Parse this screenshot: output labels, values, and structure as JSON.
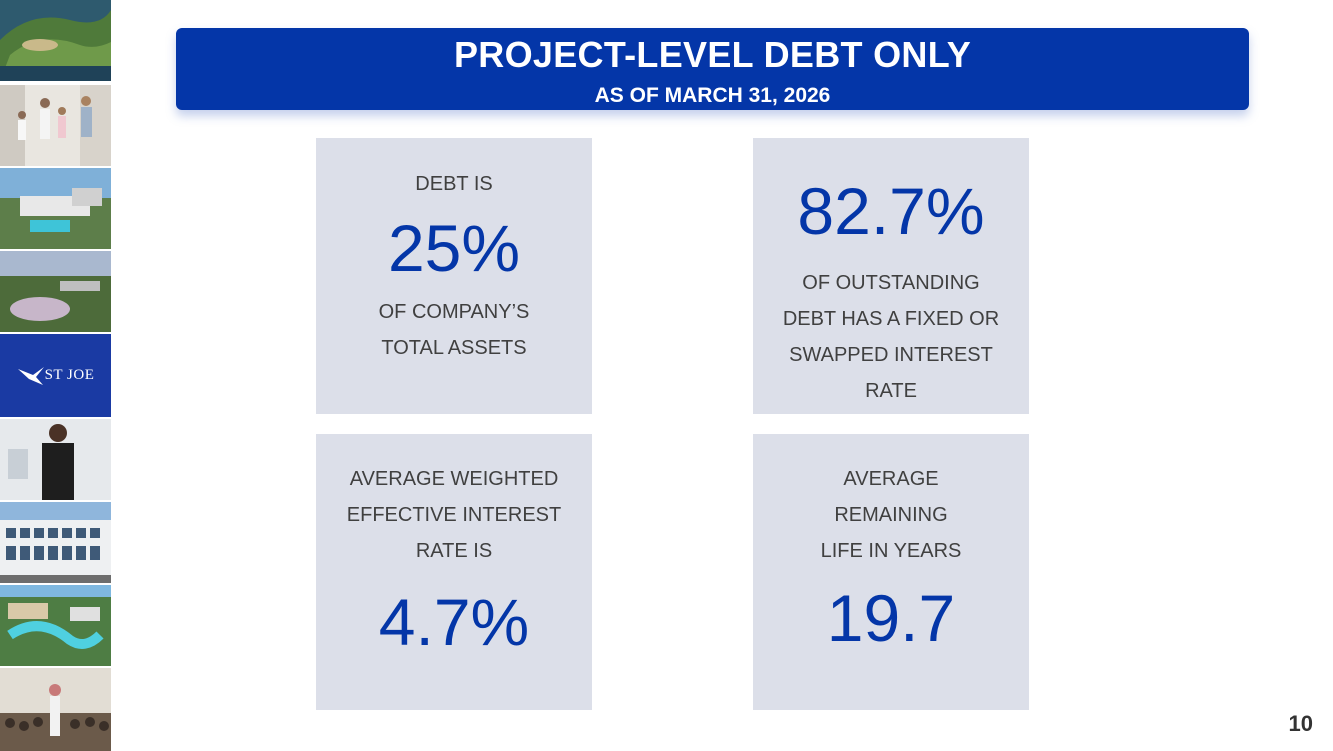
{
  "header": {
    "title": "PROJECT-LEVEL DEBT ONLY",
    "subtitle": "AS OF MARCH 31, 2026"
  },
  "cards": [
    {
      "pre": "DEBT IS",
      "value": "25%",
      "post": [
        "OF COMPANY’S",
        "TOTAL ASSETS"
      ]
    },
    {
      "value": "82.7%",
      "post": [
        "OF OUTSTANDING",
        "DEBT HAS A FIXED OR",
        "SWAPPED INTEREST",
        "RATE"
      ]
    },
    {
      "pre": [
        "AVERAGE WEIGHTED",
        "EFFECTIVE INTEREST",
        "RATE IS"
      ],
      "value": "4.7%"
    },
    {
      "pre": [
        "AVERAGE",
        "REMAINING",
        "LIFE IN YEARS"
      ],
      "value": "19.7"
    }
  ],
  "logo": {
    "text": "ST JOE"
  },
  "page_number": "10",
  "colors": {
    "brand_blue": "#0436a8",
    "card_bg": "#dcdfe9",
    "label_text": "#404040"
  }
}
